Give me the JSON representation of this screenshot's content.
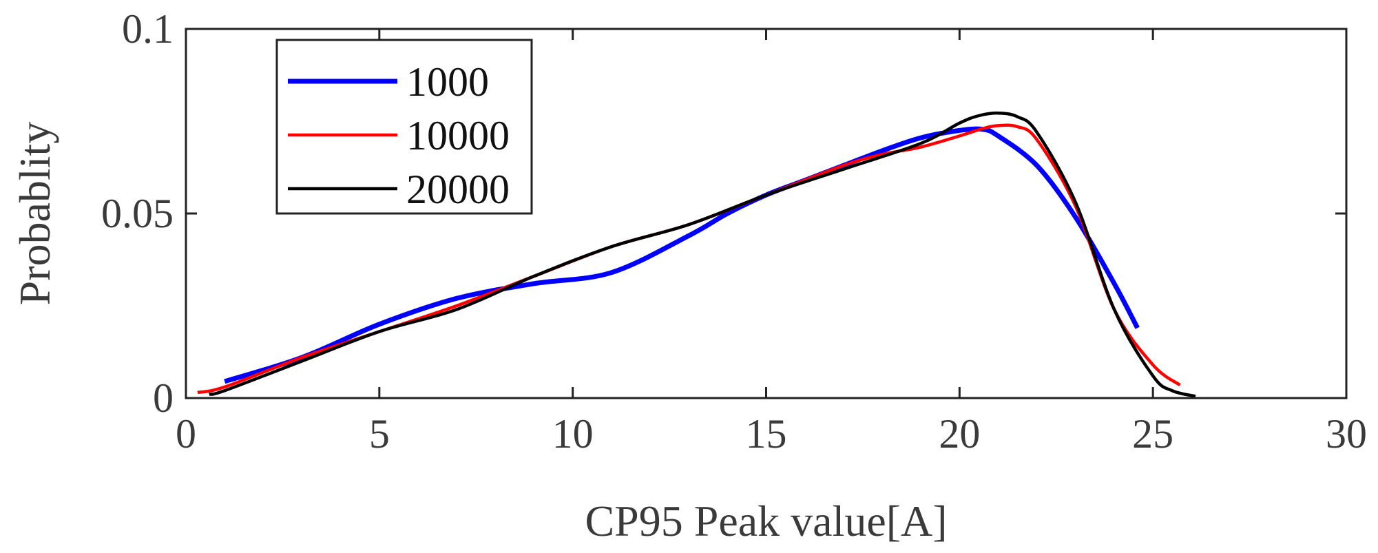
{
  "chart_data": {
    "type": "line",
    "title": "",
    "xlabel": "CP95 Peak value[A]",
    "ylabel": "Probablity",
    "xlim": [
      0,
      30
    ],
    "ylim": [
      0,
      0.1
    ],
    "xticks": [
      0,
      5,
      10,
      15,
      20,
      25,
      30
    ],
    "yticks": [
      0,
      0.05,
      0.1
    ],
    "xtick_labels": [
      "0",
      "5",
      "10",
      "15",
      "20",
      "25",
      "30"
    ],
    "ytick_labels": [
      "0",
      "0.05",
      "0.1"
    ],
    "legend_position": "top-left",
    "series": [
      {
        "name": "1000",
        "color": "#0000ff",
        "x": [
          1.0,
          3.0,
          5.0,
          7.0,
          9.0,
          11.0,
          13.0,
          14.0,
          15.0,
          16.0,
          17.0,
          18.0,
          19.0,
          20.0,
          20.6,
          21.0,
          22.0,
          23.0,
          24.0,
          24.6
        ],
        "y": [
          0.0045,
          0.011,
          0.02,
          0.027,
          0.031,
          0.034,
          0.044,
          0.05,
          0.055,
          0.059,
          0.063,
          0.067,
          0.0705,
          0.0725,
          0.0728,
          0.071,
          0.063,
          0.049,
          0.031,
          0.019
        ]
      },
      {
        "name": "10000",
        "color": "#ff0000",
        "x": [
          0.3,
          1.0,
          3.0,
          5.0,
          7.0,
          9.0,
          11.0,
          13.0,
          15.0,
          17.0,
          18.0,
          19.0,
          20.0,
          20.6,
          21.0,
          21.5,
          22.0,
          23.0,
          24.0,
          25.0,
          25.7
        ],
        "y": [
          0.0015,
          0.003,
          0.011,
          0.018,
          0.025,
          0.033,
          0.041,
          0.047,
          0.055,
          0.063,
          0.066,
          0.068,
          0.071,
          0.073,
          0.0738,
          0.0735,
          0.07,
          0.052,
          0.024,
          0.009,
          0.0035
        ]
      },
      {
        "name": "20000",
        "color": "#000000",
        "x": [
          0.6,
          1.0,
          3.0,
          5.0,
          7.0,
          9.0,
          11.0,
          13.0,
          15.0,
          17.0,
          19.0,
          20.0,
          20.5,
          21.0,
          21.5,
          22.0,
          23.0,
          24.0,
          25.0,
          25.5,
          26.1
        ],
        "y": [
          0.001,
          0.002,
          0.01,
          0.018,
          0.024,
          0.033,
          0.041,
          0.047,
          0.055,
          0.062,
          0.069,
          0.0745,
          0.0765,
          0.0772,
          0.0762,
          0.072,
          0.053,
          0.024,
          0.006,
          0.002,
          0.0005
        ]
      }
    ]
  }
}
